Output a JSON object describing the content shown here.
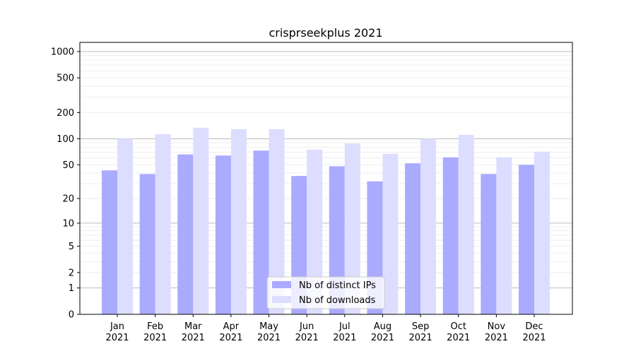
{
  "chart_data": {
    "type": "bar",
    "title": "crisprseekplus 2021",
    "xlabel": "",
    "ylabel": "",
    "yscale": "log(1+x)",
    "ylim": [
      0,
      1200
    ],
    "yticks": [
      0,
      1,
      2,
      5,
      10,
      20,
      50,
      100,
      200,
      500,
      1000
    ],
    "grid": true,
    "legend_placement": "bottom-center",
    "categories": [
      "Jan\n2021",
      "Feb\n2021",
      "Mar\n2021",
      "Apr\n2021",
      "May\n2021",
      "Jun\n2021",
      "Jul\n2021",
      "Aug\n2021",
      "Sep\n2021",
      "Oct\n2021",
      "Nov\n2021",
      "Dec\n2021"
    ],
    "series": [
      {
        "name": "Nb of distinct IPs",
        "color": "#aaaaff",
        "values": [
          43,
          39,
          66,
          64,
          73,
          37,
          48,
          32,
          52,
          61,
          39,
          50
        ]
      },
      {
        "name": "Nb of downloads",
        "color": "#ddddff",
        "values": [
          100,
          113,
          134,
          129,
          129,
          75,
          88,
          67,
          100,
          111,
          61,
          71
        ]
      }
    ]
  }
}
